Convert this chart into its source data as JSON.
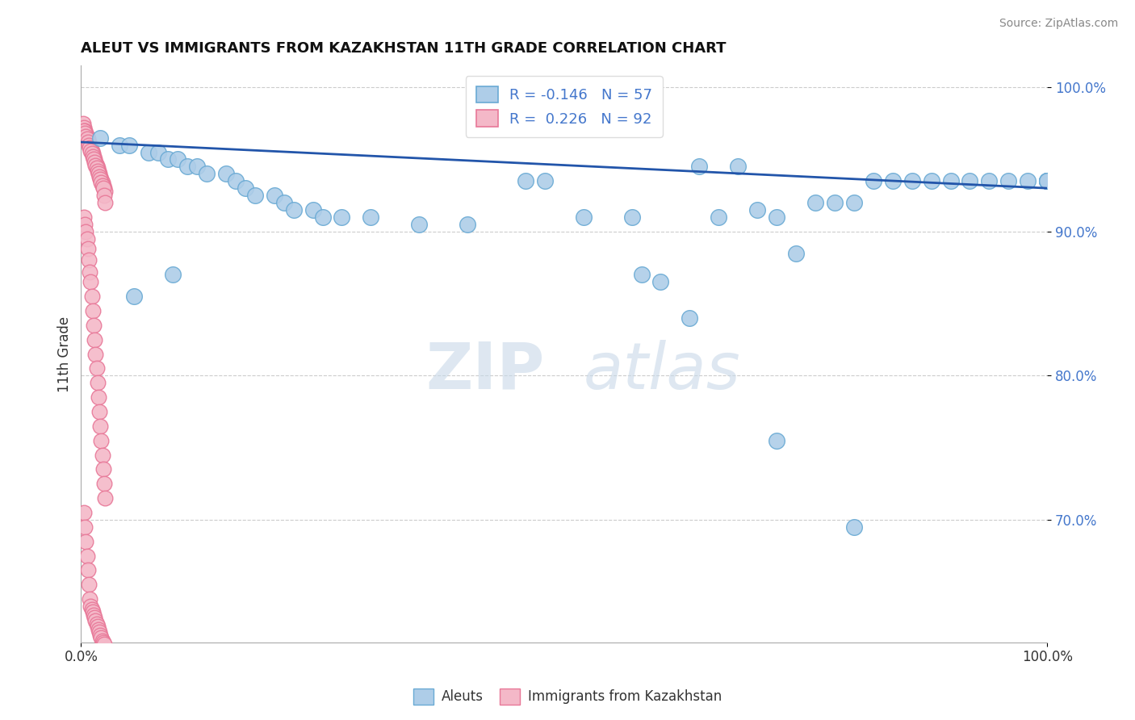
{
  "title": "ALEUT VS IMMIGRANTS FROM KAZAKHSTAN 11TH GRADE CORRELATION CHART",
  "source": "Source: ZipAtlas.com",
  "ylabel": "11th Grade",
  "xlim": [
    0.0,
    1.0
  ],
  "ylim": [
    0.615,
    1.015
  ],
  "ytick_positions": [
    0.7,
    0.8,
    0.9,
    1.0
  ],
  "ytick_labels": [
    "70.0%",
    "80.0%",
    "90.0%",
    "100.0%"
  ],
  "blue_color": "#aecde8",
  "blue_edge": "#6aaad4",
  "pink_color": "#f4b8c8",
  "pink_edge": "#e87898",
  "trend_color": "#2255aa",
  "legend_R1": "-0.146",
  "legend_N1": "57",
  "legend_R2": "0.226",
  "legend_N2": "92",
  "watermark_zip": "ZIP",
  "watermark_atlas": "atlas",
  "trend_x_start": 0.0,
  "trend_x_end": 1.0,
  "trend_y_start": 0.962,
  "trend_y_end": 0.93,
  "blue_x": [
    0.02,
    0.04,
    0.05,
    0.07,
    0.08,
    0.09,
    0.1,
    0.11,
    0.12,
    0.13,
    0.15,
    0.16,
    0.17,
    0.18,
    0.2,
    0.21,
    0.22,
    0.24,
    0.25,
    0.27,
    0.3,
    0.35,
    0.4,
    0.46,
    0.48,
    0.52,
    0.57,
    0.58,
    0.64,
    0.66,
    0.68,
    0.7,
    0.72,
    0.74,
    0.76,
    0.78,
    0.8,
    0.82,
    0.84,
    0.86,
    0.88,
    0.9,
    0.92,
    0.94,
    0.96,
    0.98,
    1.0,
    1.0,
    1.0,
    1.0,
    1.0,
    0.055,
    0.095,
    0.6,
    0.63,
    0.72,
    0.8
  ],
  "blue_y": [
    0.965,
    0.96,
    0.96,
    0.955,
    0.955,
    0.95,
    0.95,
    0.945,
    0.945,
    0.94,
    0.94,
    0.935,
    0.93,
    0.925,
    0.925,
    0.92,
    0.915,
    0.915,
    0.91,
    0.91,
    0.91,
    0.905,
    0.905,
    0.935,
    0.935,
    0.91,
    0.91,
    0.87,
    0.945,
    0.91,
    0.945,
    0.915,
    0.91,
    0.885,
    0.92,
    0.92,
    0.92,
    0.935,
    0.935,
    0.935,
    0.935,
    0.935,
    0.935,
    0.935,
    0.935,
    0.935,
    0.935,
    0.935,
    0.935,
    0.935,
    0.935,
    0.855,
    0.87,
    0.865,
    0.84,
    0.755,
    0.695
  ],
  "pink_x": [
    0.002,
    0.003,
    0.004,
    0.005,
    0.006,
    0.007,
    0.008,
    0.009,
    0.01,
    0.011,
    0.012,
    0.013,
    0.014,
    0.015,
    0.016,
    0.017,
    0.018,
    0.019,
    0.02,
    0.021,
    0.022,
    0.023,
    0.024,
    0.025,
    0.003,
    0.004,
    0.005,
    0.006,
    0.007,
    0.008,
    0.009,
    0.01,
    0.011,
    0.012,
    0.013,
    0.014,
    0.015,
    0.016,
    0.017,
    0.018,
    0.019,
    0.02,
    0.021,
    0.022,
    0.023,
    0.024,
    0.025,
    0.003,
    0.004,
    0.005,
    0.006,
    0.007,
    0.008,
    0.009,
    0.01,
    0.011,
    0.012,
    0.013,
    0.014,
    0.015,
    0.016,
    0.017,
    0.018,
    0.019,
    0.02,
    0.021,
    0.022,
    0.023,
    0.024,
    0.025,
    0.003,
    0.004,
    0.005,
    0.006,
    0.007,
    0.008,
    0.009,
    0.01,
    0.011,
    0.012,
    0.013,
    0.014,
    0.015,
    0.016,
    0.017,
    0.018,
    0.019,
    0.02,
    0.021,
    0.022,
    0.023,
    0.024
  ],
  "pink_y": [
    0.975,
    0.972,
    0.97,
    0.968,
    0.966,
    0.964,
    0.962,
    0.96,
    0.958,
    0.956,
    0.954,
    0.952,
    0.95,
    0.948,
    0.946,
    0.944,
    0.942,
    0.94,
    0.938,
    0.936,
    0.934,
    0.932,
    0.93,
    0.928,
    0.97,
    0.968,
    0.966,
    0.964,
    0.962,
    0.96,
    0.958,
    0.956,
    0.954,
    0.952,
    0.95,
    0.948,
    0.946,
    0.944,
    0.942,
    0.94,
    0.938,
    0.936,
    0.934,
    0.932,
    0.93,
    0.925,
    0.92,
    0.91,
    0.905,
    0.9,
    0.895,
    0.888,
    0.88,
    0.872,
    0.865,
    0.855,
    0.845,
    0.835,
    0.825,
    0.815,
    0.805,
    0.795,
    0.785,
    0.775,
    0.765,
    0.755,
    0.745,
    0.735,
    0.725,
    0.715,
    0.705,
    0.695,
    0.685,
    0.675,
    0.665,
    0.655,
    0.645,
    0.64,
    0.638,
    0.636,
    0.634,
    0.632,
    0.63,
    0.628,
    0.626,
    0.624,
    0.622,
    0.62,
    0.618,
    0.616,
    0.615,
    0.614
  ]
}
